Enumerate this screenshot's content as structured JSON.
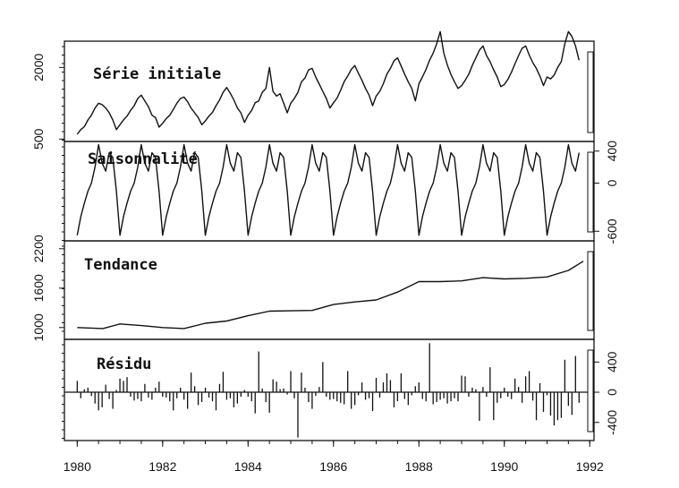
{
  "chart_data": {
    "type": "line",
    "x_ticks": [
      "1980",
      "1982",
      "1984",
      "1986",
      "1988",
      "1990",
      "1992"
    ],
    "xlim": [
      1979.7,
      1992.1
    ],
    "panels": [
      {
        "id": "initial",
        "label": "Série initiale",
        "ylim": [
          450,
          2550
        ],
        "left_ticks": [
          "500",
          "2000"
        ],
        "right_ticks": [],
        "series": {
          "start": 1980.0,
          "step": 0.0833333,
          "values": [
            600,
            700,
            760,
            900,
            1000,
            1150,
            1250,
            1220,
            1150,
            1050,
            900,
            700,
            800,
            900,
            980,
            1100,
            1200,
            1350,
            1420,
            1300,
            1180,
            1000,
            950,
            750,
            830,
            930,
            1000,
            1120,
            1250,
            1350,
            1380,
            1280,
            1150,
            1050,
            950,
            800,
            880,
            980,
            1060,
            1200,
            1320,
            1480,
            1580,
            1460,
            1320,
            1150,
            1050,
            850,
            1000,
            1100,
            1260,
            1300,
            1480,
            1560,
            2000,
            1500,
            1400,
            1450,
            1250,
            1050,
            1250,
            1350,
            1480,
            1700,
            1780,
            1950,
            1980,
            1800,
            1650,
            1500,
            1350,
            1150,
            1260,
            1360,
            1520,
            1700,
            1820,
            1960,
            2040,
            1880,
            1730,
            1560,
            1420,
            1200,
            1400,
            1500,
            1660,
            1860,
            1980,
            2140,
            2200,
            2030,
            1860,
            1700,
            1560,
            1300,
            1660,
            1800,
            1960,
            2150,
            2300,
            2500,
            2750,
            2300,
            2050,
            1850,
            1700,
            1560,
            1620,
            1730,
            1860,
            2040,
            2200,
            2360,
            2450,
            2250,
            2120,
            1950,
            1800,
            1600,
            1640,
            1750,
            1900,
            2080,
            2250,
            2400,
            2450,
            2260,
            2100,
            1980,
            1820,
            1620,
            1800,
            1760,
            1840,
            2000,
            2120,
            2500,
            2750,
            2650,
            2450,
            2150
          ]
        }
      },
      {
        "id": "seasonal",
        "label": "Saisonnalité",
        "ylim": [
          -720,
          520
        ],
        "left_ticks": [],
        "right_ticks": [
          "400",
          "0",
          "-600"
        ],
        "series": {
          "start": 1980.0,
          "step": 0.0833333,
          "cycle": [
            -650,
            -420,
            -250,
            -100,
            0,
            200,
            480,
            250,
            150,
            380,
            320,
            -100
          ],
          "repeat": 142
        }
      },
      {
        "id": "trend",
        "label": "Tendance",
        "ylim": [
          820,
          2320
        ],
        "left_ticks": [
          "1000",
          "1600",
          "2200"
        ],
        "right_ticks": [],
        "series": {
          "x": [
            1980.0,
            1980.6,
            1981.0,
            1981.5,
            1982.0,
            1982.5,
            1983.0,
            1983.5,
            1984.0,
            1984.5,
            1985.0,
            1985.5,
            1986.0,
            1986.5,
            1987.0,
            1987.5,
            1988.0,
            1988.5,
            1989.0,
            1989.5,
            1990.0,
            1990.5,
            1991.0,
            1991.5,
            1991.85
          ],
          "y": [
            1000,
            985,
            1055,
            1030,
            1000,
            985,
            1065,
            1100,
            1180,
            1250,
            1255,
            1260,
            1350,
            1390,
            1420,
            1540,
            1700,
            1700,
            1710,
            1760,
            1740,
            1750,
            1770,
            1870,
            2010
          ]
        }
      },
      {
        "id": "residual",
        "label": "Résidu",
        "ylim": [
          -640,
          700
        ],
        "left_ticks": [],
        "right_ticks": [
          "400",
          "0",
          "-400"
        ],
        "bars": {
          "start": 1980.0,
          "step": 0.0833333,
          "values": [
            150,
            -80,
            40,
            60,
            -50,
            -150,
            -240,
            -200,
            100,
            -90,
            -220,
            30,
            180,
            150,
            200,
            -60,
            -110,
            -90,
            -120,
            110,
            -70,
            -100,
            60,
            140,
            -60,
            -70,
            -120,
            -240,
            -80,
            60,
            -100,
            -220,
            260,
            80,
            -170,
            -130,
            60,
            -70,
            -120,
            -240,
            110,
            270,
            -100,
            -80,
            -200,
            -150,
            -60,
            30,
            -60,
            -120,
            -280,
            540,
            50,
            -130,
            -270,
            170,
            140,
            40,
            50,
            -30,
            280,
            -80,
            -600,
            260,
            60,
            -130,
            -220,
            -50,
            70,
            400,
            -60,
            -100,
            -90,
            -120,
            -140,
            -160,
            280,
            -220,
            -170,
            -40,
            130,
            -100,
            -80,
            -250,
            190,
            -70,
            130,
            250,
            160,
            -200,
            -120,
            250,
            -90,
            -170,
            -40,
            80,
            130,
            -90,
            -120,
            650,
            -160,
            -130,
            -100,
            -80,
            -150,
            -120,
            -80,
            -120,
            220,
            210,
            -60,
            60,
            40,
            -380,
            70,
            -60,
            330,
            -370,
            -140,
            -80,
            60,
            -60,
            -90,
            180,
            70,
            -140,
            210,
            280,
            -110,
            -370,
            120,
            -260,
            -40,
            -310,
            -440,
            -370,
            -340,
            430,
            -180,
            -300,
            480,
            -140
          ]
        }
      }
    ]
  }
}
